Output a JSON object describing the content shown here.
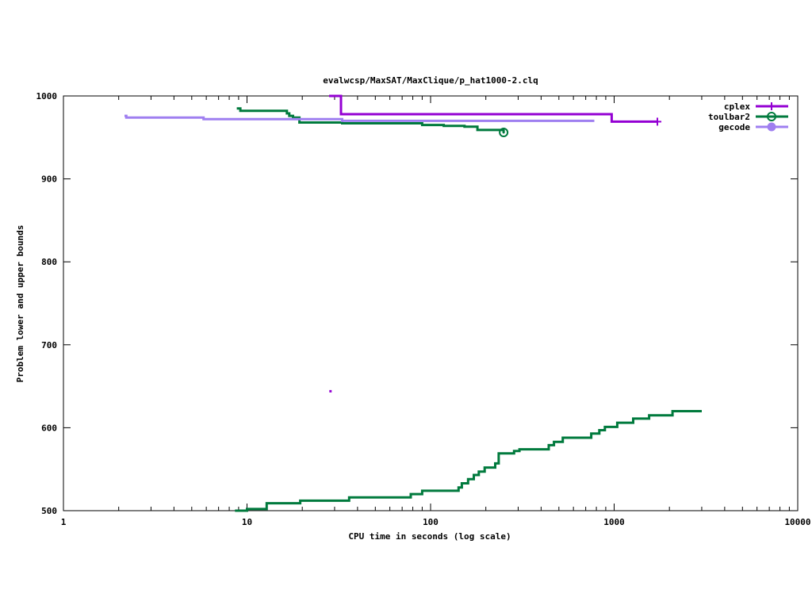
{
  "chart_data": {
    "type": "line",
    "title": "evalwcsp/MaxSAT/MaxClique/p_hat1000-2.clq",
    "xlabel": "CPU time in seconds (log scale)",
    "ylabel": "Problem lower and upper bounds",
    "xscale": "log",
    "xlim": [
      1,
      10000
    ],
    "ylim": [
      500,
      1000
    ],
    "xticks": [
      1,
      10,
      100,
      1000,
      10000
    ],
    "xtick_labels": [
      "1",
      "10",
      "100",
      "1000",
      "10000"
    ],
    "yticks": [
      500,
      600,
      700,
      800,
      900,
      1000
    ],
    "ytick_labels": [
      "500",
      "600",
      "700",
      "800",
      "900",
      "1000"
    ],
    "grid": false,
    "legend_position": "top-right",
    "series": [
      {
        "name": "cplex",
        "color": "#9400d3",
        "marker": "plus",
        "upper": [
          [
            28,
            1000
          ],
          [
            32.5,
            1000
          ],
          [
            32.5,
            978
          ],
          [
            970,
            978
          ],
          [
            970,
            969
          ],
          [
            1720,
            969
          ]
        ],
        "lower": [
          [
            28.5,
            644
          ]
        ],
        "endpoint": [
          1720,
          969
        ]
      },
      {
        "name": "toulbar2",
        "color": "#007a3d",
        "marker": "circle",
        "upper": [
          [
            8.8,
            985
          ],
          [
            9.2,
            985
          ],
          [
            9.2,
            982
          ],
          [
            16.5,
            982
          ],
          [
            16.5,
            979
          ],
          [
            17,
            979
          ],
          [
            17,
            976
          ],
          [
            17.8,
            976
          ],
          [
            17.8,
            974
          ],
          [
            19.3,
            974
          ],
          [
            19.3,
            968
          ],
          [
            33,
            968
          ],
          [
            33,
            967
          ],
          [
            90,
            967
          ],
          [
            90,
            965
          ],
          [
            118,
            965
          ],
          [
            118,
            964
          ],
          [
            153,
            964
          ],
          [
            153,
            963
          ],
          [
            180,
            963
          ],
          [
            180,
            959
          ],
          [
            250,
            959
          ],
          [
            250,
            956
          ]
        ],
        "lower": [
          [
            8.6,
            500
          ],
          [
            10,
            500
          ],
          [
            10,
            502
          ],
          [
            12.8,
            502
          ],
          [
            12.8,
            509
          ],
          [
            19.5,
            509
          ],
          [
            19.5,
            512
          ],
          [
            36,
            512
          ],
          [
            36,
            516
          ],
          [
            78,
            516
          ],
          [
            78,
            520
          ],
          [
            90,
            520
          ],
          [
            90,
            524
          ],
          [
            142,
            524
          ],
          [
            142,
            528
          ],
          [
            148,
            528
          ],
          [
            148,
            533
          ],
          [
            160,
            533
          ],
          [
            160,
            538
          ],
          [
            172,
            538
          ],
          [
            172,
            543
          ],
          [
            183,
            543
          ],
          [
            183,
            547
          ],
          [
            197,
            547
          ],
          [
            197,
            552
          ],
          [
            225,
            552
          ],
          [
            225,
            557
          ],
          [
            235,
            557
          ],
          [
            235,
            569
          ],
          [
            285,
            569
          ],
          [
            285,
            572
          ],
          [
            305,
            572
          ],
          [
            305,
            574
          ],
          [
            440,
            574
          ],
          [
            440,
            579
          ],
          [
            470,
            579
          ],
          [
            470,
            583
          ],
          [
            525,
            583
          ],
          [
            525,
            588
          ],
          [
            750,
            588
          ],
          [
            750,
            593
          ],
          [
            830,
            593
          ],
          [
            830,
            597
          ],
          [
            890,
            597
          ],
          [
            890,
            601
          ],
          [
            1040,
            601
          ],
          [
            1040,
            606
          ],
          [
            1270,
            606
          ],
          [
            1270,
            611
          ],
          [
            1550,
            611
          ],
          [
            1550,
            615
          ],
          [
            2080,
            615
          ],
          [
            2080,
            620
          ],
          [
            3000,
            620
          ]
        ],
        "endpoint": [
          250,
          956
        ]
      },
      {
        "name": "gecode",
        "color": "#9f7ff0",
        "marker": "circle-filled",
        "upper": [
          [
            2.15,
            976
          ],
          [
            2.2,
            976
          ],
          [
            2.2,
            974
          ],
          [
            5.8,
            974
          ],
          [
            5.8,
            972
          ],
          [
            33,
            972
          ],
          [
            33,
            970
          ],
          [
            780,
            970
          ]
        ],
        "lower": [],
        "endpoint": null
      }
    ]
  }
}
